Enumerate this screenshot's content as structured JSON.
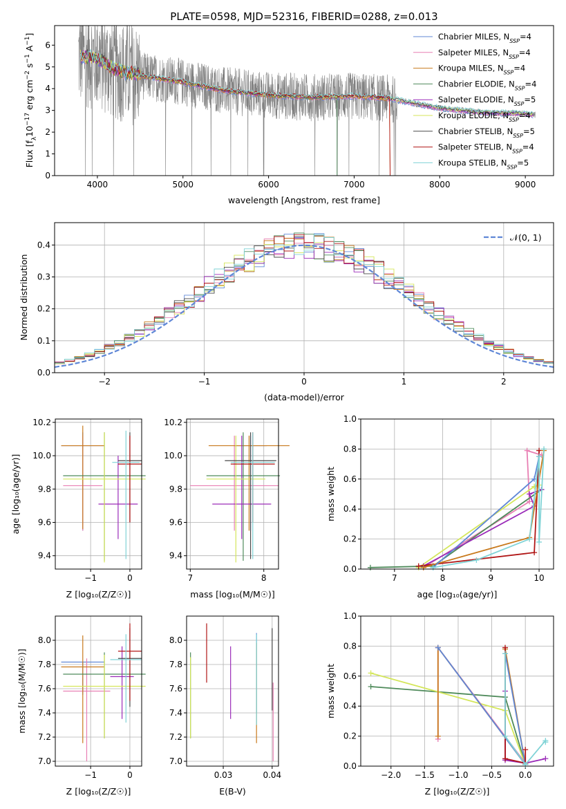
{
  "figure": {
    "title": "PLATE=0598, MJD=52316, FIBERID=0288, z=0.013"
  },
  "models": [
    {
      "label": "Chabrier MILES, N",
      "sub": "SSP",
      "eq": "=4",
      "color": "#5f87d6"
    },
    {
      "label": "Salpeter MILES, N",
      "sub": "SSP",
      "eq": "=4",
      "color": "#e87fb3"
    },
    {
      "label": "Kroupa MILES, N",
      "sub": "SSP",
      "eq": "=4",
      "color": "#c8791c"
    },
    {
      "label": "Chabrier ELODIE, N",
      "sub": "SSP",
      "eq": "=4",
      "color": "#4e8a5a"
    },
    {
      "label": "Salpeter ELODIE, N",
      "sub": "SSP",
      "eq": "=5",
      "color": "#9a2ab8"
    },
    {
      "label": "Kroupa ELODIE, N",
      "sub": "SSP",
      "eq": "=4",
      "color": "#d4e65a"
    },
    {
      "label": "Chabrier STELIB, N",
      "sub": "SSP",
      "eq": "=5",
      "color": "#4a4a4a"
    },
    {
      "label": "Salpeter STELIB, N",
      "sub": "SSP",
      "eq": "=4",
      "color": "#b01515"
    },
    {
      "label": "Kroupa STELIB, N",
      "sub": "SSP",
      "eq": "=5",
      "color": "#7fd3d6"
    }
  ],
  "chart_data": [
    {
      "type": "line",
      "title": "PLATE=0598, MJD=52316, FIBERID=0288, z=0.013",
      "xlabel": "wavelength [Angstrom, rest frame]",
      "ylabel_parts": [
        "Flux [f",
        "λ",
        "10",
        "−17",
        " erg cm",
        "−2",
        " s",
        "−1",
        " A",
        "−1",
        "]"
      ],
      "xlim": [
        3500,
        9330
      ],
      "ylim": [
        0,
        6.9
      ],
      "xticks": [
        "4000",
        "5000",
        "6000",
        "7000",
        "8000",
        "9000"
      ],
      "yticks": [
        "0",
        "1",
        "2",
        "3",
        "4",
        "5",
        "6"
      ],
      "data_color": "#808080",
      "continuum_x": [
        3800,
        4000,
        4200,
        4500,
        5000,
        5500,
        6000,
        6500,
        7000,
        7400,
        8000,
        8500,
        9000,
        9100
      ],
      "continuum_y": [
        5.5,
        5.4,
        4.9,
        4.6,
        4.3,
        3.9,
        3.7,
        3.6,
        3.65,
        3.55,
        3.1,
        2.9,
        2.85,
        2.8
      ],
      "legend_loc": "upper right"
    },
    {
      "type": "histogram",
      "xlabel": "(data-model)/error",
      "ylabel": "Normed distribution",
      "xlim": [
        -2.5,
        2.5
      ],
      "ylim": [
        0,
        0.47
      ],
      "xticks": [
        "−2",
        "−1",
        "0",
        "1",
        "2"
      ],
      "yticks": [
        "0.0",
        "0.1",
        "0.2",
        "0.3",
        "0.4"
      ],
      "bin_width": 0.1,
      "normal_label": "𝒩(0, 1)",
      "normal_color": "#5f87d6",
      "grid": true
    },
    {
      "type": "errorbar",
      "xlabel": "Z [log₁₀(Z/Z☉)]",
      "ylabel": "age  [log₁₀(age/yr)]",
      "xlim": [
        -1.9,
        0.3
      ],
      "ylim": [
        9.32,
        10.22
      ],
      "xticks": [
        "−1",
        "0"
      ],
      "xtick_vals": [
        -1,
        0
      ],
      "yticks": [
        "9.4",
        "9.6",
        "9.8",
        "10.0",
        "10.2"
      ],
      "ytick_vals": [
        9.4,
        9.6,
        9.8,
        10.0,
        10.2
      ],
      "points": [
        {
          "x": -1.2,
          "xerr": 0.55,
          "y": 10.06,
          "ylo": 9.55,
          "yhi": 10.14,
          "c": 0
        },
        {
          "x": -1.2,
          "xerr": 0.5,
          "y": 9.82,
          "ylo": 9.55,
          "yhi": 10.12,
          "c": 1
        },
        {
          "x": -1.2,
          "xerr": 0.55,
          "y": 10.06,
          "ylo": 9.56,
          "yhi": 10.18,
          "c": 2
        },
        {
          "x": -0.65,
          "xerr": 1.05,
          "y": 9.88,
          "ylo": 9.37,
          "yhi": 10.14,
          "c": 3
        },
        {
          "x": -0.3,
          "xerr": 0.5,
          "y": 9.71,
          "ylo": 9.5,
          "yhi": 10.0,
          "c": 4
        },
        {
          "x": -0.65,
          "xerr": 1.05,
          "y": 9.86,
          "ylo": 9.36,
          "yhi": 10.14,
          "c": 5
        },
        {
          "x": 0.0,
          "xerr": 0.3,
          "y": 9.97,
          "ylo": 9.6,
          "yhi": 10.14,
          "c": 6
        },
        {
          "x": 0.0,
          "xerr": 0.3,
          "y": 9.95,
          "ylo": 9.6,
          "yhi": 10.12,
          "c": 7
        },
        {
          "x": -0.1,
          "xerr": 0.35,
          "y": 9.96,
          "ylo": 9.38,
          "yhi": 10.15,
          "c": 8
        }
      ]
    },
    {
      "type": "errorbar",
      "xlabel": "mass [log₁₀(M/M☉)]",
      "ylabel": "",
      "xlim": [
        6.95,
        8.2
      ],
      "ylim": [
        9.32,
        10.22
      ],
      "xticks": [
        "7",
        "8"
      ],
      "xtick_vals": [
        7,
        8
      ],
      "yticks": [
        "9.4",
        "9.6",
        "9.8",
        "10.0",
        "10.2"
      ],
      "ytick_vals": [
        9.4,
        9.6,
        9.8,
        10.0,
        10.2
      ],
      "points": [
        {
          "x": 7.82,
          "xerr": 0.22,
          "y": 10.06,
          "ylo": 9.55,
          "yhi": 10.12,
          "c": 0
        },
        {
          "x": 7.6,
          "xerr": 0.6,
          "y": 9.82,
          "ylo": 9.55,
          "yhi": 10.12,
          "c": 1
        },
        {
          "x": 7.8,
          "xerr": 0.55,
          "y": 10.06,
          "ylo": 9.55,
          "yhi": 10.12,
          "c": 2
        },
        {
          "x": 7.72,
          "xerr": 0.5,
          "y": 9.88,
          "ylo": 9.37,
          "yhi": 10.14,
          "c": 3
        },
        {
          "x": 7.7,
          "xerr": 0.4,
          "y": 9.71,
          "ylo": 9.5,
          "yhi": 10.12,
          "c": 4
        },
        {
          "x": 7.62,
          "xerr": 0.4,
          "y": 9.86,
          "ylo": 9.36,
          "yhi": 10.12,
          "c": 5
        },
        {
          "x": 7.82,
          "xerr": 0.35,
          "y": 9.97,
          "ylo": 9.38,
          "yhi": 10.14,
          "c": 6
        },
        {
          "x": 7.85,
          "xerr": 0.3,
          "y": 9.95,
          "ylo": 9.6,
          "yhi": 10.14,
          "c": 7
        },
        {
          "x": 7.85,
          "xerr": 0.3,
          "y": 9.96,
          "ylo": 9.38,
          "yhi": 10.14,
          "c": 8
        }
      ]
    },
    {
      "type": "line",
      "xlabel": "age  [log₁₀(age/yr)]",
      "ylabel": "mass weight",
      "xlim": [
        6.3,
        10.3
      ],
      "ylim": [
        0,
        1.0
      ],
      "xticks": [
        "7",
        "8",
        "9",
        "10"
      ],
      "xtick_vals": [
        7,
        8,
        9,
        10
      ],
      "yticks": [
        "0.0",
        "0.2",
        "0.4",
        "0.6",
        "0.8",
        "1.0"
      ],
      "ytick_vals": [
        0,
        0.2,
        0.4,
        0.6,
        0.8,
        1.0
      ],
      "grid": true,
      "series": [
        {
          "c": 1,
          "x": [
            7.6,
            9.8,
            9.75,
            10.05
          ],
          "y": [
            0.01,
            0.45,
            0.79,
            0.76
          ]
        },
        {
          "c": 3,
          "x": [
            6.5,
            7.8,
            10.05
          ],
          "y": [
            0.01,
            0.02,
            0.53
          ]
        },
        {
          "c": 5,
          "x": [
            7.5,
            9.9,
            10.0
          ],
          "y": [
            0.01,
            0.55,
            0.56
          ]
        },
        {
          "c": 4,
          "x": [
            7.6,
            9.9,
            9.8,
            10.05
          ],
          "y": [
            0.02,
            0.42,
            0.5,
            0.53
          ]
        },
        {
          "c": 7,
          "x": [
            7.5,
            9.9,
            10.0
          ],
          "y": [
            0.02,
            0.11,
            0.79
          ]
        },
        {
          "c": 2,
          "x": [
            7.6,
            9.8,
            10.1
          ],
          "y": [
            0.01,
            0.21,
            0.79
          ]
        },
        {
          "c": 0,
          "x": [
            7.8,
            9.9,
            10.0
          ],
          "y": [
            0.01,
            0.6,
            0.75
          ]
        },
        {
          "c": 8,
          "x": [
            7.8,
            8.7,
            9.8,
            10.0,
            10.0,
            10.1
          ],
          "y": [
            0.01,
            0.06,
            0.2,
            0.75,
            0.18,
            0.8
          ]
        }
      ]
    },
    {
      "type": "errorbar",
      "xlabel": "Z [log₁₀(Z/Z☉)]",
      "ylabel": "mass [log₁₀(M/M☉)]",
      "xlim": [
        -1.9,
        0.3
      ],
      "ylim": [
        6.96,
        8.2
      ],
      "xticks": [
        "−1",
        "0"
      ],
      "xtick_vals": [
        -1,
        0
      ],
      "yticks": [
        "7.0",
        "7.2",
        "7.4",
        "7.6",
        "7.8",
        "8.0"
      ],
      "ytick_vals": [
        7.0,
        7.2,
        7.4,
        7.6,
        7.8,
        8.0
      ],
      "points": [
        {
          "x": -1.2,
          "xerr": 0.55,
          "y": 7.82,
          "ylo": 7.55,
          "yhi": 7.82,
          "c": 0
        },
        {
          "x": -1.1,
          "xerr": 0.6,
          "y": 7.58,
          "ylo": 7.0,
          "yhi": 7.85,
          "c": 1
        },
        {
          "x": -1.2,
          "xerr": 0.55,
          "y": 7.78,
          "ylo": 7.15,
          "yhi": 8.04,
          "c": 2
        },
        {
          "x": -0.65,
          "xerr": 1.05,
          "y": 7.72,
          "ylo": 7.19,
          "yhi": 7.9,
          "c": 3
        },
        {
          "x": -0.2,
          "xerr": 0.3,
          "y": 7.7,
          "ylo": 7.35,
          "yhi": 7.95,
          "c": 4
        },
        {
          "x": -0.65,
          "xerr": 1.05,
          "y": 7.62,
          "ylo": 7.19,
          "yhi": 7.88,
          "c": 5
        },
        {
          "x": 0.0,
          "xerr": 0.3,
          "y": 7.85,
          "ylo": 7.45,
          "yhi": 8.1,
          "c": 6
        },
        {
          "x": 0.0,
          "xerr": 0.3,
          "y": 7.91,
          "ylo": 7.5,
          "yhi": 8.14,
          "c": 7
        },
        {
          "x": -0.1,
          "xerr": 0.4,
          "y": 7.84,
          "ylo": 7.32,
          "yhi": 8.05,
          "c": 8
        }
      ]
    },
    {
      "type": "errorbar",
      "xlabel": "E(B-V)",
      "ylabel": "",
      "xlim": [
        0.0225,
        0.0413
      ],
      "ylim": [
        6.96,
        8.2
      ],
      "xticks": [
        "0.03",
        "0.04"
      ],
      "xtick_vals": [
        0.03,
        0.04
      ],
      "yticks": [
        "7.0",
        "7.2",
        "7.4",
        "7.6",
        "7.8",
        "8.0"
      ],
      "ytick_vals": [
        7.0,
        7.2,
        7.4,
        7.6,
        7.8,
        8.0
      ],
      "points": [
        {
          "x": 0.0368,
          "xerr": 0,
          "y": 7.6,
          "ylo": 7.4,
          "yhi": 8.06,
          "c": 0
        },
        {
          "x": 0.0402,
          "xerr": 0,
          "y": 7.4,
          "ylo": 7.0,
          "yhi": 7.65,
          "c": 1
        },
        {
          "x": 0.0368,
          "xerr": 0,
          "y": 7.3,
          "ylo": 7.15,
          "yhi": 7.98,
          "c": 2
        },
        {
          "x": 0.0233,
          "xerr": 0,
          "y": 7.6,
          "ylo": 7.19,
          "yhi": 7.9,
          "c": 3
        },
        {
          "x": 0.0315,
          "xerr": 0,
          "y": 7.5,
          "ylo": 7.35,
          "yhi": 7.95,
          "c": 4
        },
        {
          "x": 0.0233,
          "xerr": 0,
          "y": 7.5,
          "ylo": 7.19,
          "yhi": 7.86,
          "c": 5
        },
        {
          "x": 0.04,
          "xerr": 0,
          "y": 7.8,
          "ylo": 7.42,
          "yhi": 8.1,
          "c": 6
        },
        {
          "x": 0.0266,
          "xerr": 0,
          "y": 7.9,
          "ylo": 7.65,
          "yhi": 8.14,
          "c": 7
        },
        {
          "x": 0.0368,
          "xerr": 0,
          "y": 7.7,
          "ylo": 7.3,
          "yhi": 8.05,
          "c": 8
        }
      ]
    },
    {
      "type": "line",
      "xlabel": "Z [log₁₀(Z/Z☉)]",
      "ylabel": "mass weight",
      "xlim": [
        -2.45,
        0.42
      ],
      "ylim": [
        0,
        1.0
      ],
      "xticks": [
        "−2.0",
        "−1.5",
        "−1.0",
        "−0.5",
        "0.0"
      ],
      "xtick_vals": [
        -2.0,
        -1.5,
        -1.0,
        -0.5,
        0.0
      ],
      "yticks": [
        "0.0",
        "0.2",
        "0.4",
        "0.6",
        "0.8",
        "1.0"
      ],
      "ytick_vals": [
        0,
        0.2,
        0.4,
        0.6,
        0.8,
        1.0
      ],
      "grid": true,
      "series": [
        {
          "c": 3,
          "x": [
            -2.3,
            -0.3,
            0.0
          ],
          "y": [
            0.53,
            0.46,
            0.01
          ]
        },
        {
          "c": 5,
          "x": [
            -2.3,
            -0.3,
            0.0
          ],
          "y": [
            0.62,
            0.37,
            0.01
          ]
        },
        {
          "c": 1,
          "x": [
            -1.3,
            -1.3,
            0.0,
            -0.3
          ],
          "y": [
            0.18,
            0.79,
            0.02,
            0.05
          ]
        },
        {
          "c": 2,
          "x": [
            -1.3,
            -1.3,
            0.0,
            -0.3,
            -0.3
          ],
          "y": [
            0.2,
            0.79,
            0.01,
            0.78,
            0.05
          ]
        },
        {
          "c": 0,
          "x": [
            -1.3,
            0.0,
            -0.3,
            -0.3
          ],
          "y": [
            0.79,
            0.01,
            0.75,
            0.05
          ]
        },
        {
          "c": 4,
          "x": [
            -0.3,
            -0.3,
            0.0,
            0.3
          ],
          "y": [
            0.5,
            0.04,
            0.02,
            0.05
          ]
        },
        {
          "c": 7,
          "x": [
            -0.3,
            -0.3,
            0.0,
            0.0
          ],
          "y": [
            0.79,
            0.05,
            0.02,
            0.11
          ]
        },
        {
          "c": 8,
          "x": [
            -0.3,
            -0.3,
            0.0,
            0.3,
            0.3
          ],
          "y": [
            0.75,
            0.2,
            0.01,
            0.17,
            0.16
          ]
        }
      ]
    }
  ]
}
